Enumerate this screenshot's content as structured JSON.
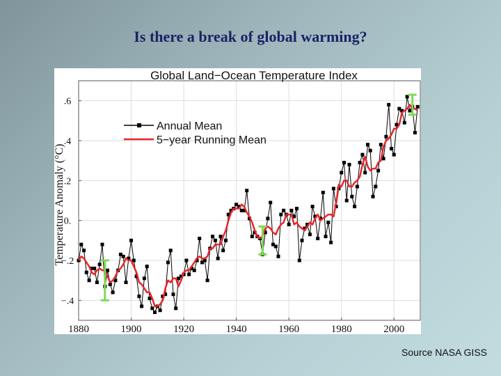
{
  "slide": {
    "title": "Is there a break of global warming?",
    "source": "Source NASA GISS"
  },
  "chart_data": {
    "type": "line",
    "title": "Global Land−Ocean Temperature Index",
    "xlabel": "",
    "ylabel": "Temperature Anomaly (°C)",
    "xlim": [
      1880,
      2010
    ],
    "ylim": [
      -0.5,
      0.7
    ],
    "xticks": [
      1880,
      1900,
      1920,
      1940,
      1960,
      1980,
      2000
    ],
    "yticks": [
      -0.4,
      -0.2,
      0.0,
      0.2,
      0.4,
      0.6
    ],
    "ytick_labels": [
      "−.4",
      "−.2",
      "0.",
      ".2",
      ".4",
      ".6"
    ],
    "grid": true,
    "legend": "top-left",
    "colors": {
      "annual": "#000000",
      "running": "#e8262a",
      "error_bars": "#7ed957"
    },
    "x": [
      1880,
      1881,
      1882,
      1883,
      1884,
      1885,
      1886,
      1887,
      1888,
      1889,
      1890,
      1891,
      1892,
      1893,
      1894,
      1895,
      1896,
      1897,
      1898,
      1899,
      1900,
      1901,
      1902,
      1903,
      1904,
      1905,
      1906,
      1907,
      1908,
      1909,
      1910,
      1911,
      1912,
      1913,
      1914,
      1915,
      1916,
      1917,
      1918,
      1919,
      1920,
      1921,
      1922,
      1923,
      1924,
      1925,
      1926,
      1927,
      1928,
      1929,
      1930,
      1931,
      1932,
      1933,
      1934,
      1935,
      1936,
      1937,
      1938,
      1939,
      1940,
      1941,
      1942,
      1943,
      1944,
      1945,
      1946,
      1947,
      1948,
      1949,
      1950,
      1951,
      1952,
      1953,
      1954,
      1955,
      1956,
      1957,
      1958,
      1959,
      1960,
      1961,
      1962,
      1963,
      1964,
      1965,
      1966,
      1967,
      1968,
      1969,
      1970,
      1971,
      1972,
      1973,
      1974,
      1975,
      1976,
      1977,
      1978,
      1979,
      1980,
      1981,
      1982,
      1983,
      1984,
      1985,
      1986,
      1987,
      1988,
      1989,
      1990,
      1991,
      1992,
      1993,
      1994,
      1995,
      1996,
      1997,
      1998,
      1999,
      2000,
      2001,
      2002,
      2003,
      2004,
      2005,
      2006,
      2007,
      2008,
      2009
    ],
    "series": [
      {
        "name": "Annual Mean",
        "values": [
          -0.2,
          -0.12,
          -0.15,
          -0.26,
          -0.3,
          -0.24,
          -0.24,
          -0.31,
          -0.22,
          -0.12,
          -0.33,
          -0.25,
          -0.32,
          -0.36,
          -0.3,
          -0.25,
          -0.17,
          -0.18,
          -0.31,
          -0.19,
          -0.1,
          -0.2,
          -0.28,
          -0.38,
          -0.43,
          -0.29,
          -0.23,
          -0.39,
          -0.44,
          -0.46,
          -0.43,
          -0.45,
          -0.38,
          -0.37,
          -0.21,
          -0.15,
          -0.37,
          -0.44,
          -0.29,
          -0.28,
          -0.27,
          -0.2,
          -0.27,
          -0.24,
          -0.25,
          -0.2,
          -0.09,
          -0.21,
          -0.2,
          -0.3,
          -0.14,
          -0.08,
          -0.1,
          -0.19,
          -0.08,
          -0.15,
          -0.1,
          0.03,
          0.05,
          0.06,
          0.08,
          0.07,
          0.05,
          0.05,
          0.15,
          0.01,
          -0.08,
          -0.06,
          -0.08,
          -0.09,
          -0.17,
          -0.06,
          0.01,
          0.09,
          -0.12,
          -0.13,
          -0.18,
          0.03,
          0.05,
          0.03,
          -0.02,
          0.05,
          0.02,
          0.06,
          -0.2,
          -0.1,
          -0.04,
          -0.02,
          -0.07,
          0.07,
          0.02,
          -0.09,
          0.01,
          0.14,
          -0.08,
          -0.01,
          -0.11,
          0.16,
          0.07,
          0.16,
          0.24,
          0.29,
          0.1,
          0.28,
          0.12,
          0.07,
          0.17,
          0.29,
          0.33,
          0.24,
          0.38,
          0.35,
          0.12,
          0.17,
          0.25,
          0.38,
          0.31,
          0.42,
          0.58,
          0.36,
          0.33,
          0.48,
          0.56,
          0.55,
          0.49,
          0.62,
          0.55,
          0.57,
          0.44,
          0.57
        ]
      },
      {
        "name": "5−year Running Mean",
        "values": [
          -0.2,
          -0.18,
          -0.19,
          -0.21,
          -0.23,
          -0.26,
          -0.27,
          -0.25,
          -0.24,
          -0.25,
          -0.25,
          -0.28,
          -0.31,
          -0.3,
          -0.28,
          -0.25,
          -0.24,
          -0.22,
          -0.19,
          -0.2,
          -0.2,
          -0.23,
          -0.26,
          -0.31,
          -0.32,
          -0.34,
          -0.36,
          -0.36,
          -0.39,
          -0.43,
          -0.43,
          -0.42,
          -0.4,
          -0.34,
          -0.3,
          -0.31,
          -0.29,
          -0.29,
          -0.33,
          -0.3,
          -0.26,
          -0.25,
          -0.25,
          -0.23,
          -0.21,
          -0.19,
          -0.18,
          -0.19,
          -0.19,
          -0.18,
          -0.14,
          -0.14,
          -0.12,
          -0.12,
          -0.12,
          -0.08,
          -0.05,
          0.0,
          0.04,
          0.06,
          0.06,
          0.06,
          0.08,
          0.07,
          0.04,
          0.02,
          -0.01,
          -0.05,
          -0.08,
          -0.09,
          -0.08,
          -0.04,
          -0.03,
          -0.04,
          -0.06,
          -0.07,
          -0.04,
          -0.02,
          -0.01,
          0.03,
          0.03,
          0.03,
          -0.02,
          -0.01,
          -0.03,
          -0.04,
          -0.05,
          -0.03,
          -0.01,
          -0.02,
          0.01,
          0.03,
          0.0,
          0.01,
          0.02,
          0.03,
          0.03,
          0.02,
          0.09,
          0.18,
          0.17,
          0.2,
          0.2,
          0.17,
          0.17,
          0.19,
          0.2,
          0.22,
          0.28,
          0.32,
          0.27,
          0.25,
          0.26,
          0.26,
          0.29,
          0.3,
          0.37,
          0.4,
          0.41,
          0.43,
          0.46,
          0.46,
          0.48,
          0.54,
          0.55,
          0.56,
          0.58,
          0.56,
          0.56,
          0.55
        ]
      }
    ],
    "error_bars": [
      {
        "x": 1890,
        "low": -0.4,
        "high": -0.2
      },
      {
        "x": 1950,
        "low": -0.17,
        "high": -0.03
      },
      {
        "x": 2007,
        "low": 0.53,
        "high": 0.63
      }
    ]
  }
}
